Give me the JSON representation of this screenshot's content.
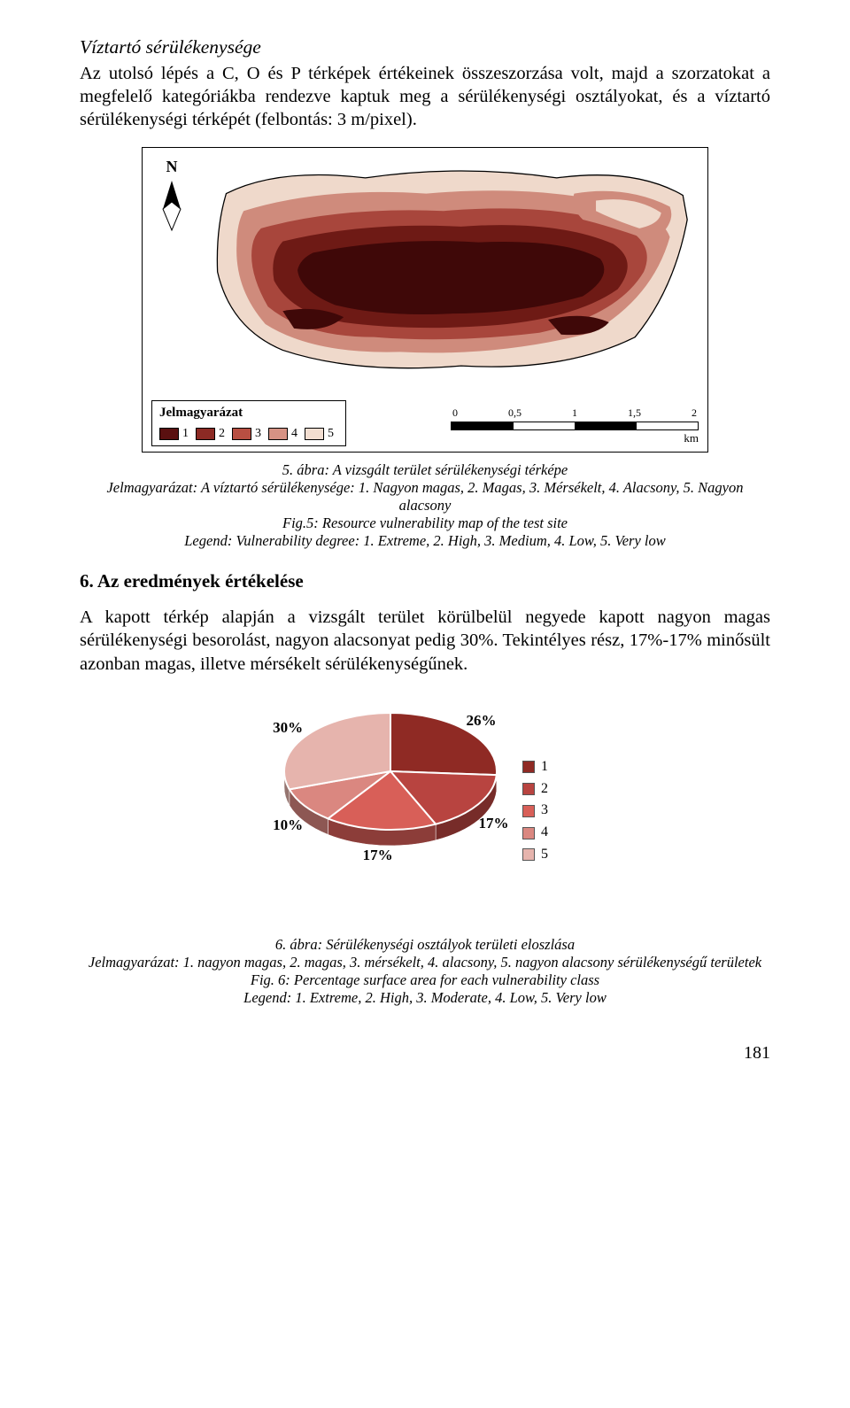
{
  "intro": {
    "title": "Víztartó sérülékenysége",
    "body": "Az utolsó lépés a C, O és P térképek értékeinek összeszorzása volt, majd a szorzatokat a megfelelő kategóriákba rendezve kaptuk meg a sérülékenységi osztályokat, és a víztartó sérülékenységi térképét (felbontás: 3 m/pixel)."
  },
  "map": {
    "north_label": "N",
    "legend_title": "Jelmagyarázat",
    "legend_items": [
      "1",
      "2",
      "3",
      "4",
      "5"
    ],
    "legend_colors": [
      "#5a1010",
      "#8c2a24",
      "#b84f42",
      "#d69284",
      "#f3ded1"
    ],
    "map_colors": {
      "darkest": "#3f0808",
      "dark": "#6e1a15",
      "mid": "#a8463c",
      "light": "#cf8b7c",
      "lightest": "#efd9cb",
      "border": "#000000"
    },
    "scale_ticks": [
      "0",
      "0,5",
      "1",
      "1,5",
      "2"
    ],
    "scale_unit": "km",
    "scale_seg_colors": [
      "#000000",
      "#ffffff",
      "#000000",
      "#ffffff"
    ]
  },
  "caption1": {
    "line1": "5. ábra: A vizsgált terület sérülékenységi térképe",
    "line2": "Jelmagyarázat: A víztartó sérülékenysége: 1. Nagyon magas, 2. Magas, 3. Mérsékelt, 4. Alacsony, 5. Nagyon alacsony",
    "line3": "Fig.5: Resource vulnerability map of the test site",
    "line4": "Legend: Vulnerability degree: 1. Extreme, 2. High, 3. Medium, 4. Low, 5. Very low"
  },
  "section6": {
    "heading": "6. Az eredmények értékelése",
    "p1": "A kapott térkép alapján a vizsgált terület körülbelül negyede kapott nagyon magas sérülékenységi besorolást, nagyon alacsonyat pedig 30%. Tekintélyes rész, 17%-17% minősült azonban magas, illetve mérsékelt sérülékenységűnek."
  },
  "pie": {
    "type": "pie",
    "slices": [
      {
        "label": "1",
        "value": 26,
        "pct_label": "26%",
        "color": "#8f2a24"
      },
      {
        "label": "2",
        "value": 17,
        "pct_label": "17%",
        "color": "#b84440"
      },
      {
        "label": "3",
        "value": 17,
        "pct_label": "17%",
        "color": "#d85f58"
      },
      {
        "label": "4",
        "value": 10,
        "pct_label": "10%",
        "color": "#da8780"
      },
      {
        "label": "5",
        "value": 30,
        "pct_label": "30%",
        "color": "#e6b4ad"
      }
    ],
    "stroke": "#ffffff",
    "stroke_width": 2,
    "label_fontsize": 17,
    "label_weight": "bold",
    "radius": 120,
    "tilt": 0.55,
    "depth": 18
  },
  "caption2": {
    "line1": "6. ábra: Sérülékenységi osztályok területi eloszlása",
    "line2": "Jelmagyarázat: 1. nagyon magas, 2. magas, 3. mérsékelt, 4. alacsony, 5. nagyon alacsony sérülékenységű területek",
    "line3": "Fig. 6: Percentage surface area for each vulnerability class",
    "line4": "Legend: 1. Extreme, 2. High, 3. Moderate, 4. Low, 5. Very low"
  },
  "page_number": "181"
}
